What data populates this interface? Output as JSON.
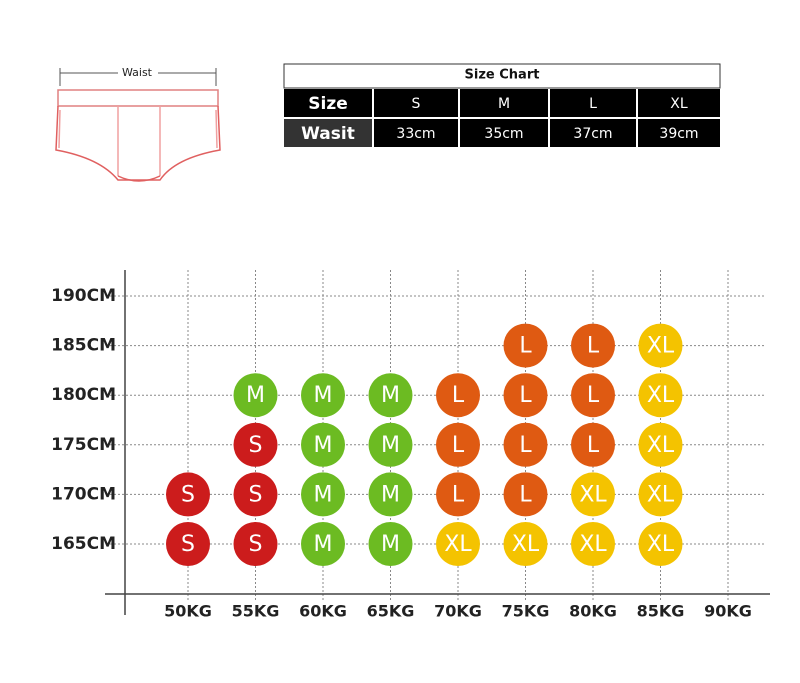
{
  "diagram": {
    "label": "Waist"
  },
  "table": {
    "title": "Size Chart",
    "rows": [
      [
        "Size",
        "S",
        "M",
        "L",
        "XL"
      ],
      [
        "Wasit",
        "33cm",
        "35cm",
        "37cm",
        "39cm"
      ]
    ]
  },
  "grid": {
    "heights": [
      "190CM",
      "185CM",
      "180CM",
      "175CM",
      "170CM",
      "165CM"
    ],
    "weights": [
      "50KG",
      "55KG",
      "60KG",
      "65KG",
      "70KG",
      "75KG",
      "80KG",
      "85KG",
      "90KG"
    ],
    "colors": {
      "S": "#cc1c1c",
      "M": "#6cbb22",
      "L": "#df5a12",
      "XL": "#f4c300"
    },
    "cells": [
      [
        null,
        null,
        null,
        null,
        null,
        null,
        null,
        null,
        null
      ],
      [
        null,
        null,
        null,
        null,
        null,
        "L",
        "L",
        "XL",
        null
      ],
      [
        null,
        "M",
        "M",
        "M",
        "L",
        "L",
        "L",
        "XL",
        null
      ],
      [
        null,
        "S",
        "M",
        "M",
        "L",
        "L",
        "L",
        "XL",
        null
      ],
      [
        "S",
        "S",
        "M",
        "M",
        "L",
        "L",
        "XL",
        "XL",
        null
      ],
      [
        "S",
        "S",
        "M",
        "M",
        "XL",
        "XL",
        "XL",
        "XL",
        null
      ]
    ]
  }
}
